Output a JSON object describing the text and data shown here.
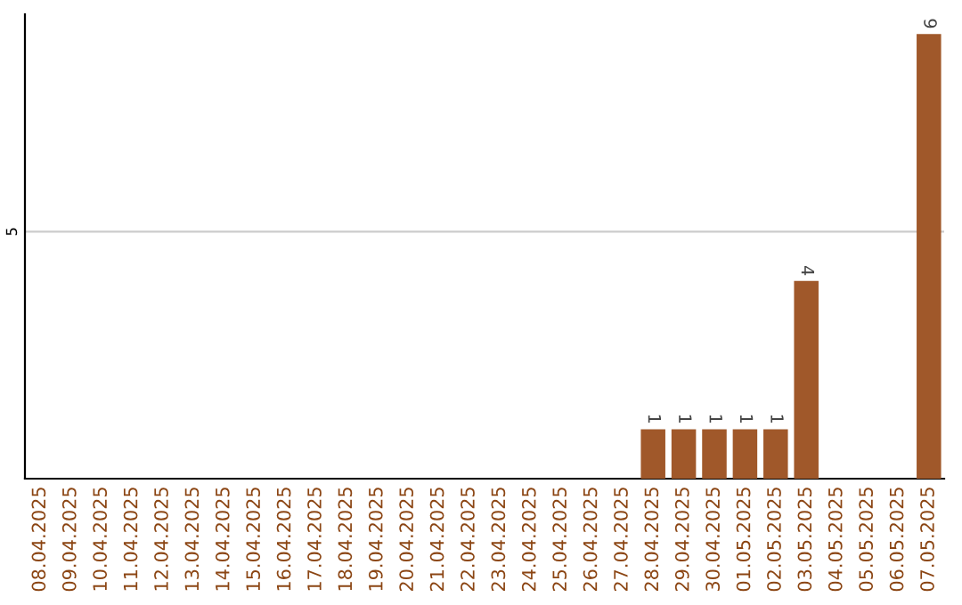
{
  "chart_data": {
    "type": "bar",
    "categories": [
      "08.04.2025",
      "09.04.2025",
      "10.04.2025",
      "11.04.2025",
      "12.04.2025",
      "13.04.2025",
      "14.04.2025",
      "15.04.2025",
      "16.04.2025",
      "17.04.2025",
      "18.04.2025",
      "19.04.2025",
      "20.04.2025",
      "21.04.2025",
      "22.04.2025",
      "23.04.2025",
      "24.04.2025",
      "25.04.2025",
      "26.04.2025",
      "27.04.2025",
      "28.04.2025",
      "29.04.2025",
      "30.04.2025",
      "01.05.2025",
      "02.05.2025",
      "03.05.2025",
      "04.05.2025",
      "05.05.2025",
      "06.05.2025",
      "07.05.2025"
    ],
    "values": [
      null,
      null,
      null,
      null,
      null,
      null,
      null,
      null,
      null,
      null,
      null,
      null,
      null,
      null,
      null,
      null,
      null,
      null,
      null,
      null,
      1,
      1,
      1,
      1,
      1,
      4,
      null,
      null,
      null,
      9
    ],
    "color": "#a0582a",
    "ylim": [
      0,
      9.4
    ],
    "yticks": [
      5
    ],
    "grid": "y",
    "data_labels": true
  }
}
